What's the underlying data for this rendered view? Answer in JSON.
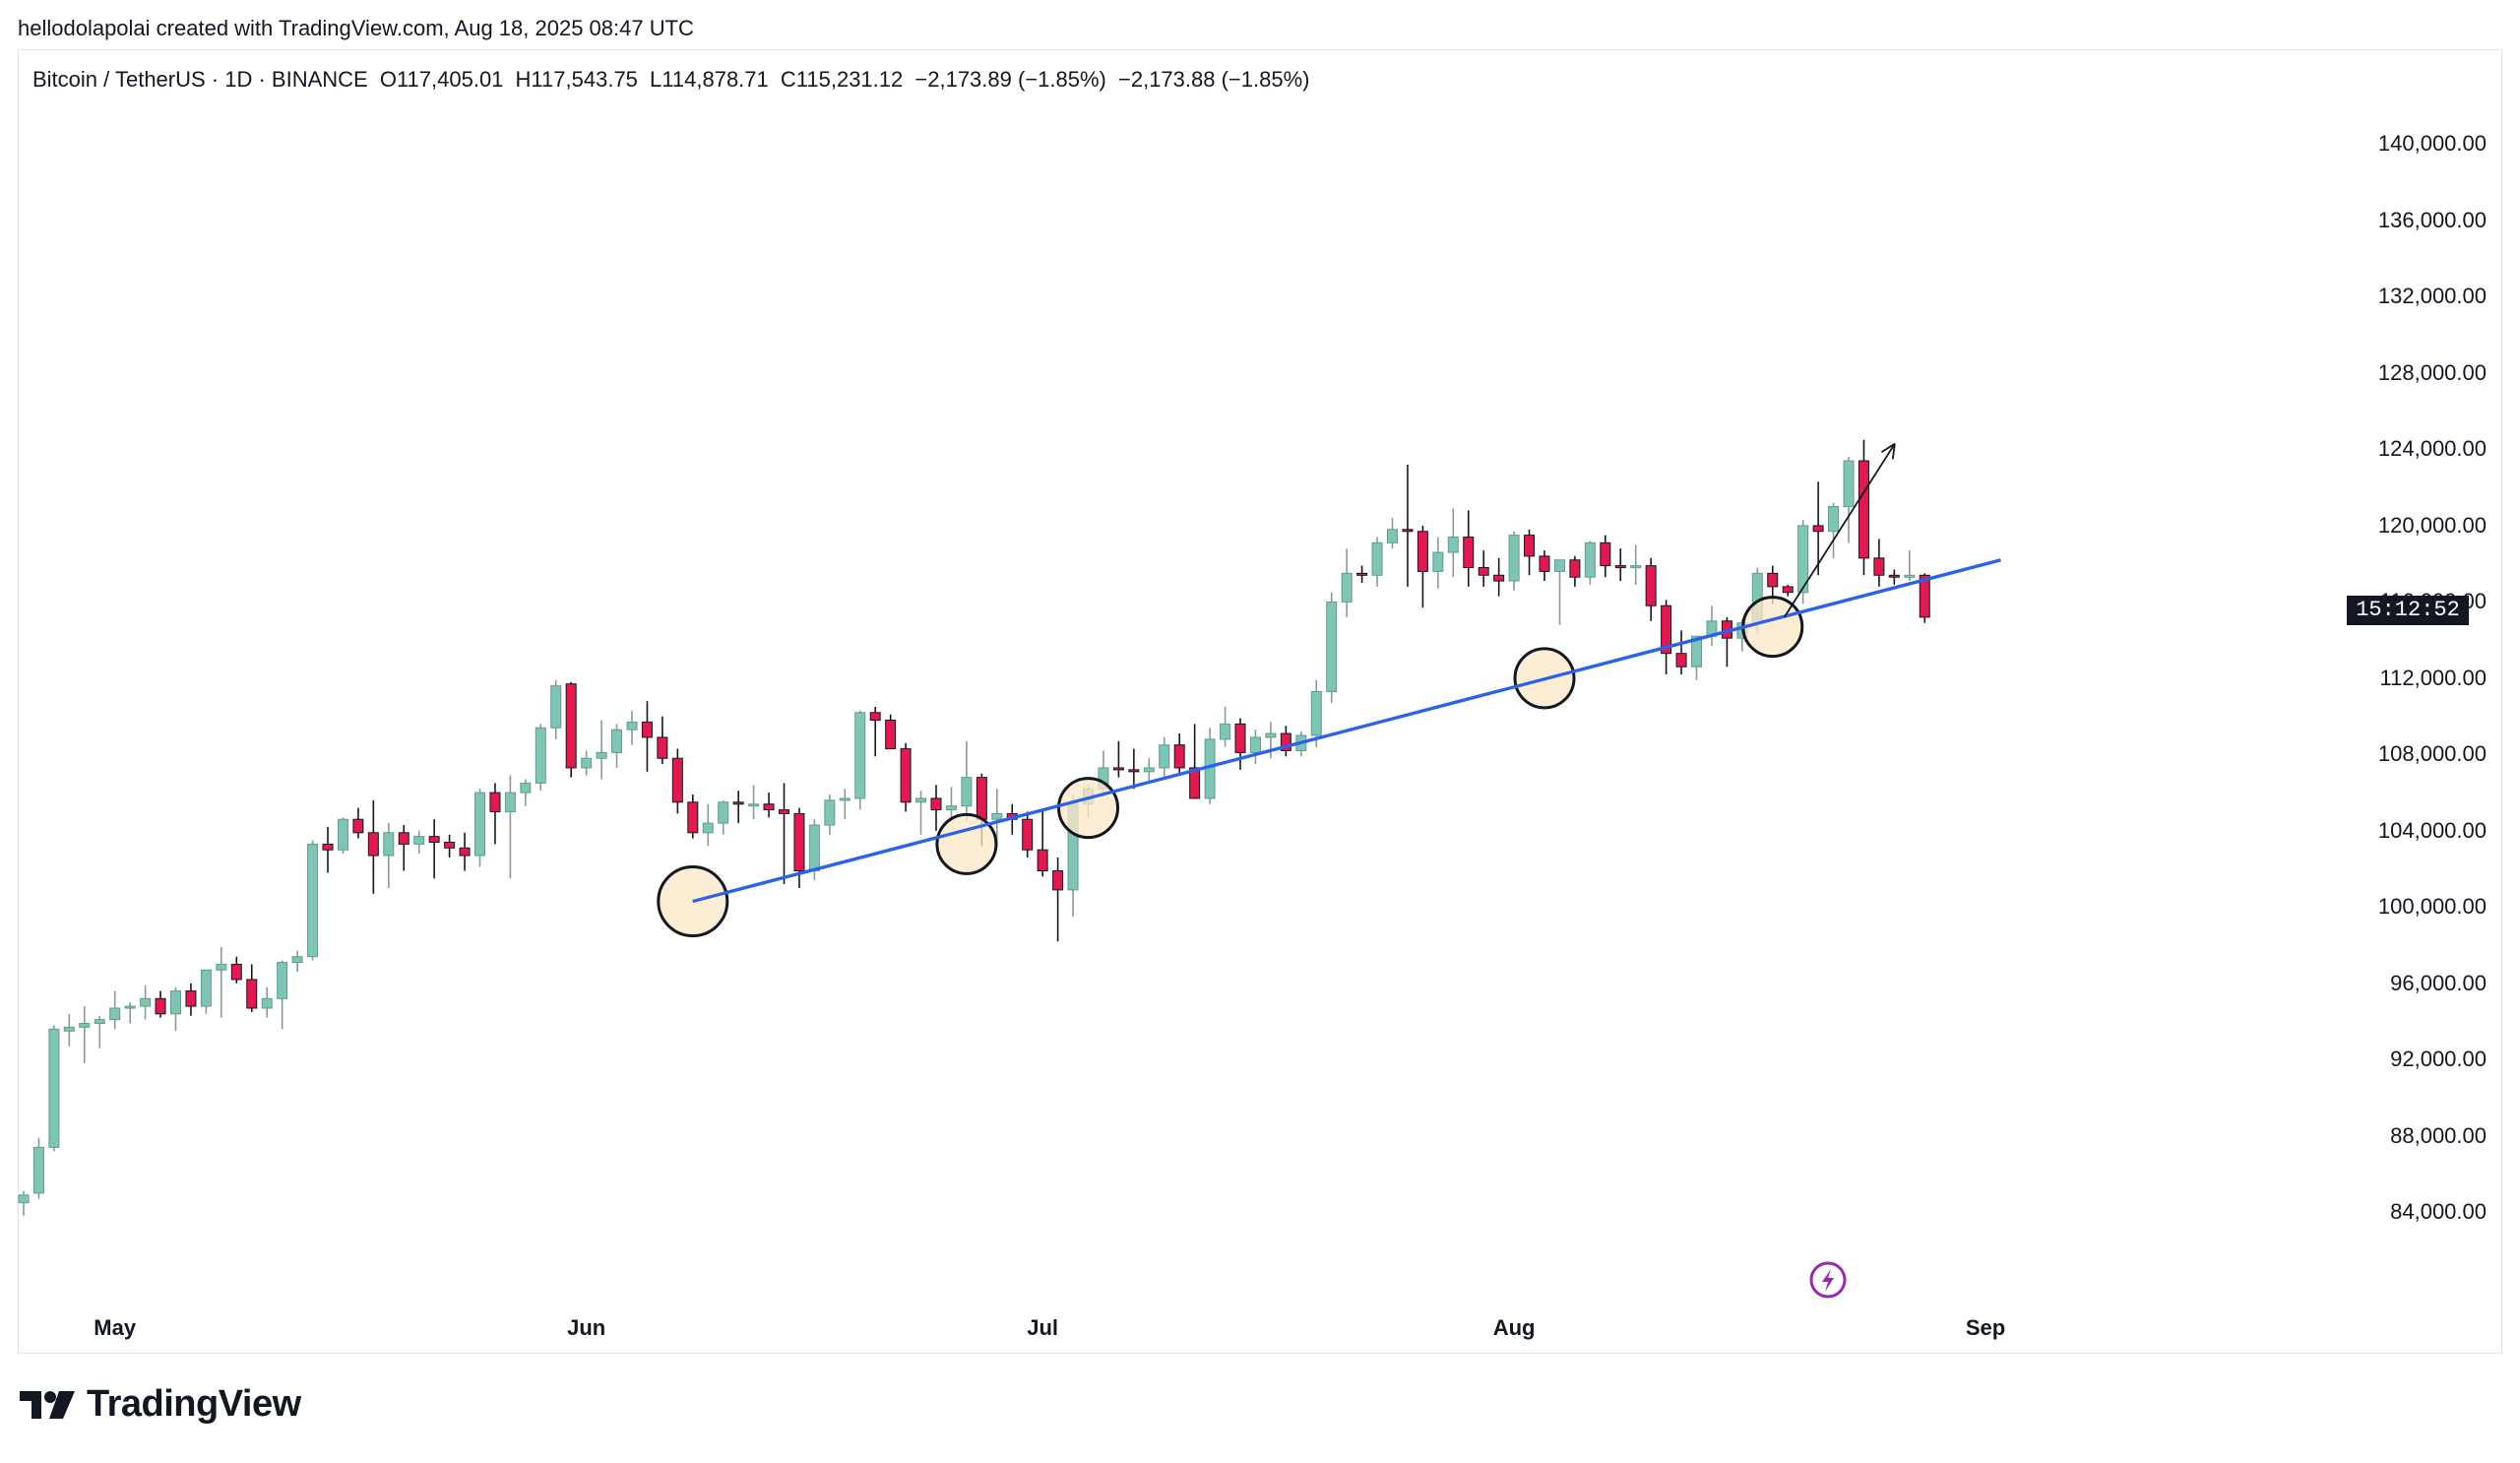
{
  "caption": "hellodolapolai created with TradingView.com, Aug 18, 2025 08:47 UTC",
  "legend": {
    "symbol": "Bitcoin / TetherUS · 1D · BINANCE",
    "open": "O117,405.01",
    "high": "H117,543.75",
    "low": "L114,878.71",
    "close": "C115,231.12",
    "change": "−2,173.89 (−1.85%)",
    "change2": "−2,173.88 (−1.85%)"
  },
  "countdown": "15:12:52",
  "brand": "TradingView",
  "colors": {
    "up": "#7fc4b4",
    "down": "#e0194f",
    "trendline": "#2b62ec",
    "touch_fill": "#fde7c7",
    "axis_text": "#131722"
  },
  "icons": {
    "alert": "lightning-icon",
    "logo": "tradingview-logo-icon"
  },
  "chart_data": {
    "type": "candlestick",
    "price_axis": [
      "140,000.00",
      "136,000.00",
      "132,000.00",
      "128,000.00",
      "124,000.00",
      "120,000.00",
      "116,000.00",
      "112,000.00",
      "108,000.00",
      "104,000.00",
      "100,000.00",
      "96,000.00",
      "92,000.00",
      "88,000.00",
      "84,000.00"
    ],
    "time_axis": [
      "May",
      "Jun",
      "Jul",
      "Aug",
      "Sep"
    ],
    "ylim": [
      82000,
      142400
    ],
    "candles": [
      [
        84500,
        85100,
        83800,
        84900
      ],
      [
        85000,
        87900,
        84700,
        87400
      ],
      [
        87400,
        93800,
        87200,
        93600
      ],
      [
        93500,
        94400,
        92700,
        93700
      ],
      [
        93700,
        94800,
        91800,
        93900
      ],
      [
        93900,
        94300,
        92600,
        94100
      ],
      [
        94100,
        95600,
        93600,
        94700
      ],
      [
        94700,
        95000,
        93900,
        94800
      ],
      [
        94800,
        95900,
        94100,
        95200
      ],
      [
        95200,
        95600,
        94200,
        94400
      ],
      [
        94400,
        95800,
        93500,
        95600
      ],
      [
        95600,
        96000,
        94300,
        94800
      ],
      [
        94800,
        96700,
        94400,
        96700
      ],
      [
        96700,
        97900,
        94200,
        97000
      ],
      [
        97000,
        97400,
        96000,
        96200
      ],
      [
        96200,
        97000,
        94500,
        94700
      ],
      [
        94700,
        95800,
        94200,
        95200
      ],
      [
        95200,
        97200,
        93600,
        97100
      ],
      [
        97100,
        97700,
        96600,
        97400
      ],
      [
        97400,
        103500,
        97200,
        103300
      ],
      [
        103300,
        104200,
        101800,
        103000
      ],
      [
        103000,
        104700,
        102800,
        104600
      ],
      [
        104600,
        105200,
        103600,
        103900
      ],
      [
        103900,
        105600,
        100700,
        102700
      ],
      [
        102700,
        104400,
        101000,
        103900
      ],
      [
        103900,
        104300,
        101900,
        103300
      ],
      [
        103300,
        104000,
        102800,
        103700
      ],
      [
        103700,
        104600,
        101500,
        103400
      ],
      [
        103400,
        103800,
        102600,
        103100
      ],
      [
        103100,
        103900,
        101900,
        102700
      ],
      [
        102700,
        106200,
        102100,
        106000
      ],
      [
        106000,
        106500,
        103300,
        105000
      ],
      [
        105000,
        106900,
        101500,
        106000
      ],
      [
        106000,
        106700,
        105300,
        106500
      ],
      [
        106500,
        109600,
        106100,
        109400
      ],
      [
        109400,
        111900,
        108800,
        111600
      ],
      [
        111700,
        111800,
        106800,
        107300
      ],
      [
        107300,
        108200,
        106900,
        107800
      ],
      [
        107800,
        109800,
        106700,
        108100
      ],
      [
        108100,
        109600,
        107300,
        109300
      ],
      [
        109300,
        110300,
        108500,
        109700
      ],
      [
        109700,
        110800,
        107100,
        108900
      ],
      [
        108900,
        110000,
        107500,
        107800
      ],
      [
        107800,
        108300,
        104900,
        105500
      ],
      [
        105500,
        105900,
        103600,
        103900
      ],
      [
        103900,
        105400,
        103200,
        104400
      ],
      [
        104400,
        105600,
        103800,
        105500
      ],
      [
        105500,
        106100,
        104400,
        105400
      ],
      [
        105400,
        106400,
        104600,
        105400
      ],
      [
        105400,
        106000,
        104700,
        105100
      ],
      [
        105100,
        106500,
        101200,
        104900
      ],
      [
        104900,
        105200,
        101000,
        101900
      ],
      [
        101900,
        104600,
        101400,
        104300
      ],
      [
        104300,
        105900,
        103800,
        105600
      ],
      [
        105600,
        106200,
        104600,
        105700
      ],
      [
        105700,
        110300,
        105100,
        110200
      ],
      [
        110200,
        110500,
        107900,
        109800
      ],
      [
        109800,
        110100,
        108300,
        108300
      ],
      [
        108300,
        108600,
        105000,
        105500
      ],
      [
        105500,
        106100,
        103800,
        105700
      ],
      [
        105700,
        106400,
        104000,
        105100
      ],
      [
        105100,
        106300,
        104500,
        105300
      ],
      [
        105300,
        108700,
        104500,
        106800
      ],
      [
        106800,
        107000,
        103200,
        104600
      ],
      [
        104600,
        106200,
        103100,
        104900
      ],
      [
        104900,
        105400,
        103800,
        104600
      ],
      [
        104600,
        105000,
        102600,
        103000
      ],
      [
        103000,
        105000,
        101600,
        101900
      ],
      [
        101900,
        102600,
        98200,
        100900
      ],
      [
        100900,
        105900,
        99500,
        105400
      ],
      [
        105400,
        106400,
        104700,
        106200
      ],
      [
        106200,
        108200,
        105800,
        107300
      ],
      [
        107300,
        108700,
        106800,
        107200
      ],
      [
        107200,
        108300,
        106200,
        107100
      ],
      [
        107100,
        107800,
        106500,
        107300
      ],
      [
        107300,
        108900,
        106700,
        108500
      ],
      [
        108500,
        109100,
        106900,
        107300
      ],
      [
        107300,
        109600,
        105800,
        105700
      ],
      [
        105700,
        109400,
        105400,
        108800
      ],
      [
        108800,
        110500,
        108400,
        109600
      ],
      [
        109600,
        109900,
        107200,
        108100
      ],
      [
        108100,
        109300,
        107500,
        108900
      ],
      [
        108900,
        109700,
        107800,
        109100
      ],
      [
        109100,
        109500,
        107900,
        108200
      ],
      [
        108200,
        109200,
        107900,
        109000
      ],
      [
        109000,
        111900,
        108400,
        111300
      ],
      [
        111300,
        116500,
        110700,
        116000
      ],
      [
        116000,
        118800,
        115200,
        117500
      ],
      [
        117500,
        117900,
        117000,
        117400
      ],
      [
        117400,
        119400,
        116800,
        119100
      ],
      [
        119100,
        120400,
        118800,
        119800
      ],
      [
        119800,
        123200,
        116800,
        119700
      ],
      [
        119700,
        120000,
        115700,
        117600
      ],
      [
        117600,
        119400,
        116700,
        118600
      ],
      [
        118600,
        120900,
        117300,
        119400
      ],
      [
        119400,
        120800,
        116800,
        117800
      ],
      [
        117800,
        118700,
        116800,
        117400
      ],
      [
        117400,
        118300,
        116300,
        117100
      ],
      [
        117100,
        119700,
        116600,
        119500
      ],
      [
        119500,
        119800,
        117400,
        118400
      ],
      [
        118400,
        118700,
        117100,
        117600
      ],
      [
        117600,
        118000,
        114800,
        118200
      ],
      [
        118200,
        118400,
        116800,
        117300
      ],
      [
        117300,
        119200,
        116900,
        119100
      ],
      [
        119100,
        119500,
        117300,
        117900
      ],
      [
        117900,
        118800,
        117100,
        117800
      ],
      [
        117800,
        119000,
        116900,
        117900
      ],
      [
        117900,
        118300,
        115000,
        115800
      ],
      [
        115800,
        116100,
        112200,
        113300
      ],
      [
        113300,
        114500,
        112200,
        112600
      ],
      [
        112600,
        114100,
        111900,
        114200
      ],
      [
        114200,
        115800,
        113700,
        115000
      ],
      [
        115000,
        115200,
        112600,
        114100
      ],
      [
        114100,
        115100,
        113400,
        114900
      ],
      [
        114900,
        117800,
        114300,
        117500
      ],
      [
        117500,
        117900,
        115900,
        116800
      ],
      [
        116800,
        116900,
        116300,
        116500
      ],
      [
        116500,
        120300,
        115900,
        120000
      ],
      [
        120000,
        122300,
        117400,
        119700
      ],
      [
        119700,
        121200,
        118300,
        121000
      ],
      [
        121000,
        123600,
        119100,
        123400
      ],
      [
        123400,
        124500,
        117400,
        118300
      ],
      [
        118300,
        119300,
        116800,
        117400
      ],
      [
        117400,
        117700,
        116900,
        117300
      ],
      [
        117300,
        118700,
        117100,
        117400
      ],
      [
        117400,
        117500,
        114900,
        115200
      ]
    ],
    "trendline": {
      "from": [
        44,
        100300
      ],
      "to": [
        130,
        118200
      ]
    },
    "touch_points": [
      {
        "index": 44,
        "price": 100300
      },
      {
        "index": 62,
        "price": 103300
      },
      {
        "index": 70,
        "price": 105200
      },
      {
        "index": 100,
        "price": 112000
      },
      {
        "index": 115,
        "price": 114700
      }
    ],
    "projection_arrow": {
      "from": [
        115,
        115000
      ],
      "to": [
        122,
        124300
      ]
    }
  }
}
